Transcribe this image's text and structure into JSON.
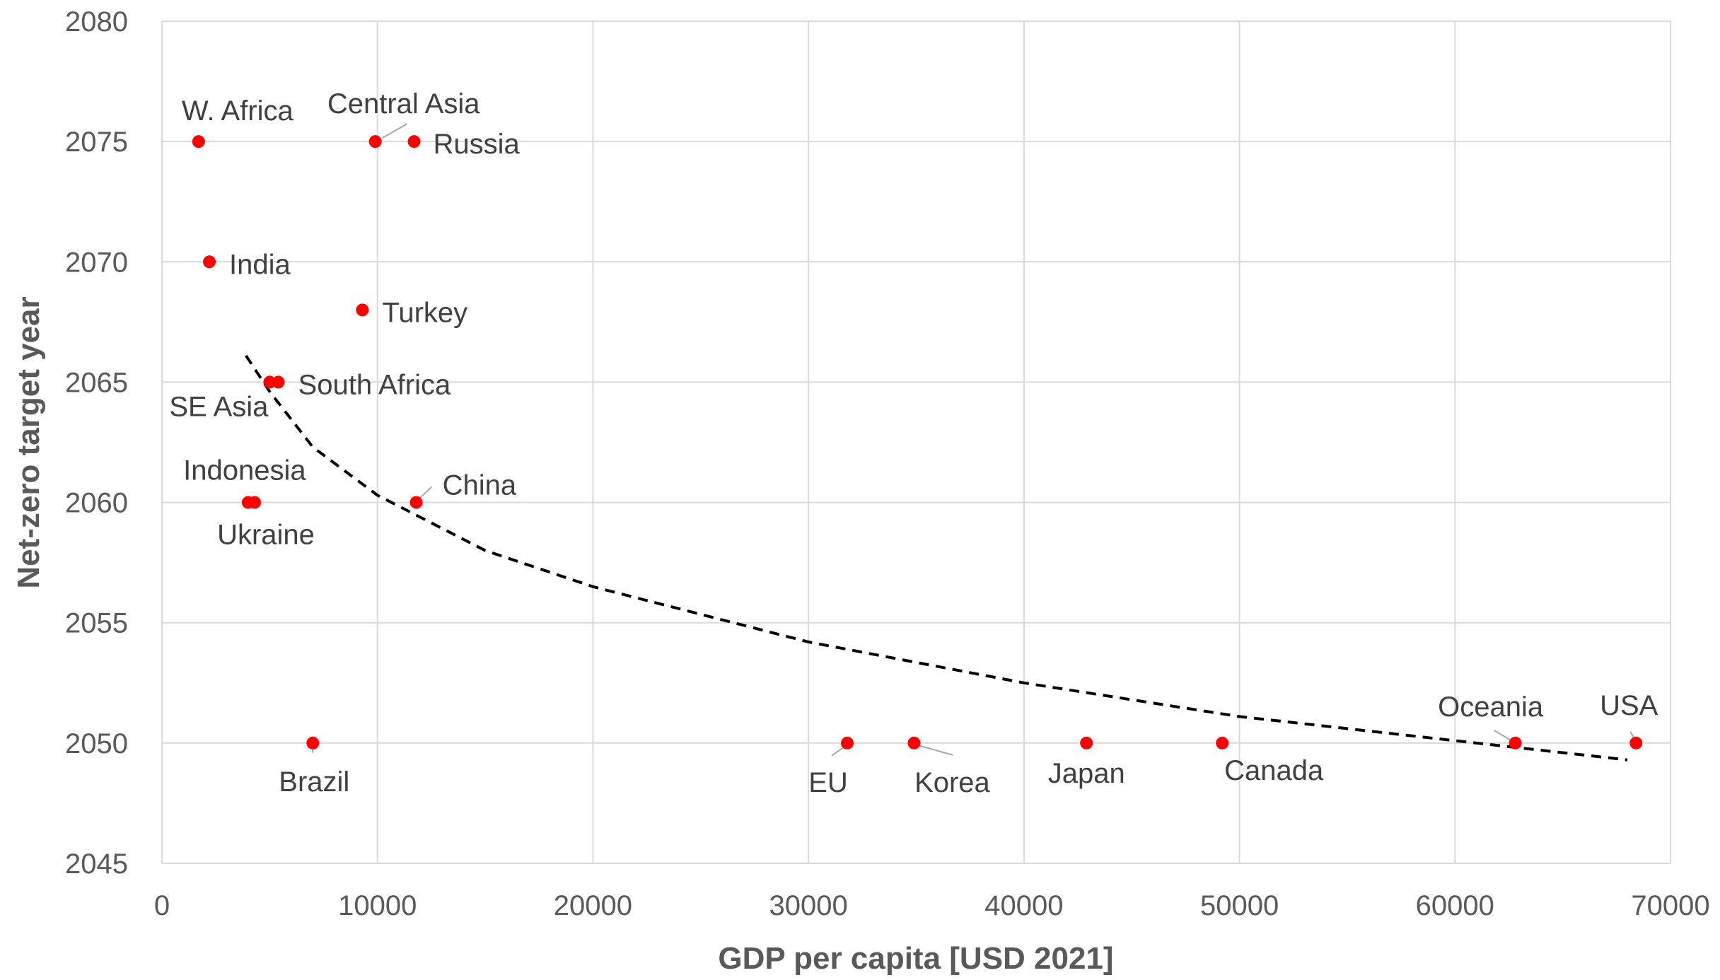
{
  "chart_data": {
    "type": "scatter",
    "title": "",
    "xlabel": "GDP per capita [USD 2021]",
    "ylabel": "Net-zero target year",
    "xlim": [
      0,
      70000
    ],
    "ylim": [
      2045,
      2080
    ],
    "x_ticks": [
      "0",
      "10000",
      "20000",
      "30000",
      "40000",
      "50000",
      "60000",
      "70000"
    ],
    "y_ticks": [
      "2045",
      "2050",
      "2055",
      "2060",
      "2065",
      "2070",
      "2075",
      "2080"
    ],
    "grid": true,
    "legend": "none",
    "point_color": "#ff0000",
    "trendline": {
      "style": "dashed",
      "color": "#000000",
      "points": [
        [
          3900,
          2066.1
        ],
        [
          5000,
          2064.6
        ],
        [
          7000,
          2062.3
        ],
        [
          10000,
          2060.3
        ],
        [
          15000,
          2058.0
        ],
        [
          20000,
          2056.5
        ],
        [
          30000,
          2054.2
        ],
        [
          40000,
          2052.5
        ],
        [
          50000,
          2051.1
        ],
        [
          60000,
          2050.1
        ],
        [
          68000,
          2049.3
        ]
      ]
    },
    "points": [
      {
        "label": "W. Africa",
        "x": 1700,
        "y": 2075
      },
      {
        "label": "Central Asia",
        "x": 9900,
        "y": 2075
      },
      {
        "label": "Russia",
        "x": 11700,
        "y": 2075
      },
      {
        "label": "India",
        "x": 2200,
        "y": 2070
      },
      {
        "label": "Turkey",
        "x": 9300,
        "y": 2068
      },
      {
        "label": "SE Asia",
        "x": 5000,
        "y": 2065
      },
      {
        "label": "South Africa",
        "x": 5400,
        "y": 2065
      },
      {
        "label": "Indonesia",
        "x": 4000,
        "y": 2060
      },
      {
        "label": "Ukraine",
        "x": 4300,
        "y": 2060
      },
      {
        "label": "China",
        "x": 11800,
        "y": 2060
      },
      {
        "label": "Brazil",
        "x": 7000,
        "y": 2050
      },
      {
        "label": "EU",
        "x": 31800,
        "y": 2050
      },
      {
        "label": "Korea",
        "x": 34900,
        "y": 2050
      },
      {
        "label": "Japan",
        "x": 42900,
        "y": 2050
      },
      {
        "label": "Canada",
        "x": 49200,
        "y": 2050
      },
      {
        "label": "Oceania",
        "x": 62800,
        "y": 2050
      },
      {
        "label": "USA",
        "x": 68400,
        "y": 2050
      }
    ]
  }
}
